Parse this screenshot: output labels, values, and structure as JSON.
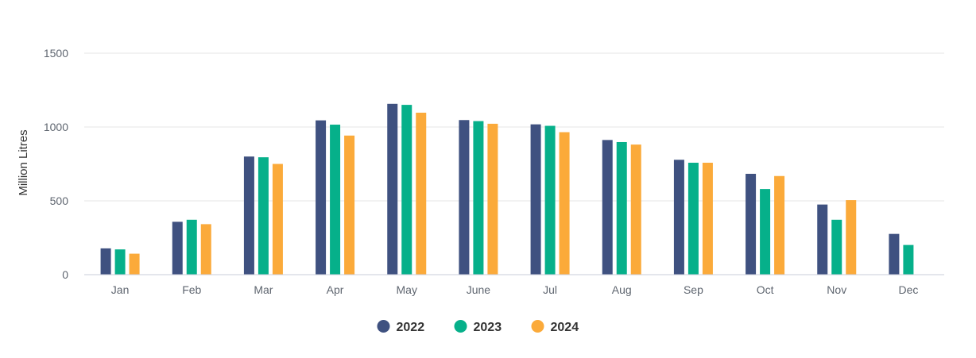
{
  "chart_data": {
    "type": "bar",
    "title": "",
    "xlabel": "",
    "ylabel": "Million Litres",
    "ylim": [
      0,
      1500
    ],
    "yticks": [
      0,
      500,
      1000,
      1500
    ],
    "grid": true,
    "legend_position": "bottom-center",
    "categories": [
      "Jan",
      "Feb",
      "Mar",
      "Apr",
      "May",
      "June",
      "Jul",
      "Aug",
      "Sep",
      "Oct",
      "Nov",
      "Dec"
    ],
    "series": [
      {
        "name": "2022",
        "color": "#3f5180",
        "values": [
          178,
          358,
          800,
          1045,
          1157,
          1047,
          1018,
          912,
          778,
          683,
          475,
          276
        ]
      },
      {
        "name": "2023",
        "color": "#06b08a",
        "values": [
          171,
          372,
          795,
          1016,
          1150,
          1040,
          1008,
          898,
          758,
          580,
          372,
          201
        ]
      },
      {
        "name": "2024",
        "color": "#fbaa3a",
        "values": [
          142,
          342,
          750,
          942,
          1097,
          1022,
          965,
          881,
          758,
          668,
          505,
          null
        ]
      }
    ]
  }
}
